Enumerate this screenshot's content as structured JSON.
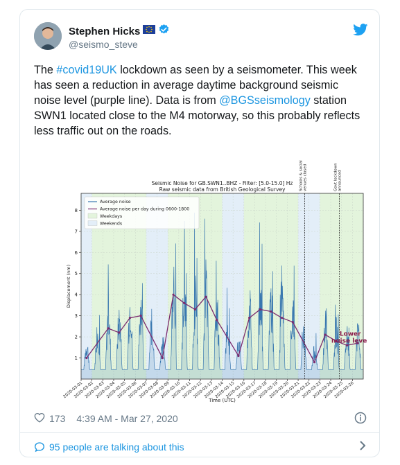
{
  "tweet": {
    "author_name": "Stephen Hicks",
    "author_handle": "@seismo_steve",
    "text_before_hashtag": "The ",
    "hashtag": "#covid19UK",
    "text_middle": " lockdown as seen by a seismometer. This week has seen a reduction in average daytime background seismic noise level (purple line). Data is from ",
    "mention": "@BGSseismology",
    "text_after_mention": " station SWN1 located close to the M4 motorway, so this probably reflects less traffic out on the roads.",
    "likes": "173",
    "timestamp": "4:39 AM - Mar 27, 2020",
    "talking": "95 people are talking about this",
    "colors": {
      "link": "#1b95e0",
      "verified": "#1da1f2",
      "bird": "#1da1f2",
      "muted": "#657786"
    }
  },
  "chart_data": {
    "type": "line",
    "title": "Seismic Noise for GB.SWN1..BHZ - Filter: [5.0-15.0] Hz",
    "subtitle": "Raw seismic data from British Geological Survey",
    "xlabel": "Time (UTC)",
    "ylabel": "Displacement (nm)",
    "ylim": [
      0,
      8.8
    ],
    "yticks": [
      "1",
      "2",
      "3",
      "4",
      "5",
      "6",
      "7",
      "8"
    ],
    "xticks": [
      "2020-03-01",
      "2020-03-02",
      "2020-03-03",
      "2020-03-04",
      "2020-03-05",
      "2020-03-06",
      "2020-03-07",
      "2020-03-08",
      "2020-03-09",
      "2020-03-10",
      "2020-03-11",
      "2020-03-12",
      "2020-03-13",
      "2020-03-14",
      "2020-03-15",
      "2020-03-16",
      "2020-03-17",
      "2020-03-18",
      "2020-03-19",
      "2020-03-20",
      "2020-03-21",
      "2020-03-22",
      "2020-03-23",
      "2020-03-24",
      "2020-03-25",
      "2020-03-26"
    ],
    "xlim": [
      0,
      26
    ],
    "legend": [
      "Average noise",
      "Average noise per day during 0600-1800",
      "Weekdays",
      "Weekends"
    ],
    "legend_position": "top-left",
    "weekends": [
      [
        0,
        1
      ],
      [
        6,
        8
      ],
      [
        13,
        15
      ],
      [
        20,
        22
      ]
    ],
    "events": [
      {
        "label_lines": [
          "Schools & social",
          "venues closed"
        ],
        "x": 20.6
      },
      {
        "label_lines": [
          "Govt lockdown",
          "announced"
        ],
        "x": 23.8
      }
    ],
    "annotation": {
      "lines": [
        "Lower",
        "noise level"
      ],
      "color": "#8b1a4a"
    },
    "daily_average": {
      "x": [
        0.5,
        2.5,
        3.5,
        4.5,
        5.5,
        7.5,
        8.5,
        9.5,
        10.5,
        11.5,
        12.5,
        14.5,
        15.5,
        16.5,
        17.5,
        18.5,
        19.5,
        21.5,
        22.5,
        23.5,
        24.5,
        25.5
      ],
      "y": [
        1.0,
        2.4,
        2.2,
        2.9,
        3.0,
        1.0,
        4.0,
        3.6,
        3.3,
        3.9,
        2.8,
        1.1,
        2.9,
        3.3,
        3.2,
        2.9,
        2.7,
        0.8,
        2.1,
        1.8,
        1.6,
        1.7
      ]
    },
    "colors": {
      "noise": "#3a78b0",
      "daily": "#7b2a6e",
      "weekday_band": "#e3f4dc",
      "weekend_band": "#e3eef8"
    }
  }
}
